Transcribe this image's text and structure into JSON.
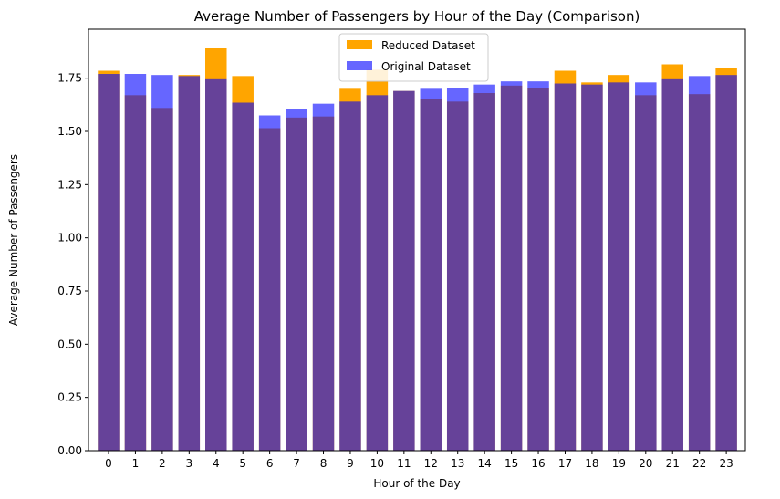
{
  "chart_data": {
    "type": "bar",
    "title": "Average Number of Passengers by Hour of the Day (Comparison)",
    "xlabel": "Hour of the Day",
    "ylabel": "Average Number of Passengers",
    "categories": [
      "0",
      "1",
      "2",
      "3",
      "4",
      "5",
      "6",
      "7",
      "8",
      "9",
      "10",
      "11",
      "12",
      "13",
      "14",
      "15",
      "16",
      "17",
      "18",
      "19",
      "20",
      "21",
      "22",
      "23"
    ],
    "ylim": [
      0,
      1.98
    ],
    "yticks": [
      "0.00",
      "0.25",
      "0.50",
      "0.75",
      "1.00",
      "1.25",
      "1.50",
      "1.75"
    ],
    "ytick_values": [
      0,
      0.25,
      0.5,
      0.75,
      1.0,
      1.25,
      1.5,
      1.75
    ],
    "series": [
      {
        "name": "Reduced Dataset",
        "color": "#ffa500",
        "opacity": 1.0,
        "values": [
          1.785,
          1.67,
          1.61,
          1.765,
          1.89,
          1.76,
          1.515,
          1.565,
          1.57,
          1.7,
          1.79,
          1.69,
          1.65,
          1.64,
          1.68,
          1.715,
          1.705,
          1.785,
          1.73,
          1.765,
          1.67,
          1.815,
          1.675,
          1.8
        ]
      },
      {
        "name": "Original Dataset",
        "color": "#0000ff",
        "opacity": 0.6,
        "values": [
          1.77,
          1.77,
          1.765,
          1.76,
          1.745,
          1.635,
          1.575,
          1.605,
          1.63,
          1.64,
          1.67,
          1.69,
          1.7,
          1.705,
          1.72,
          1.735,
          1.735,
          1.725,
          1.72,
          1.73,
          1.73,
          1.745,
          1.76,
          1.765
        ]
      }
    ],
    "legend_position": "top-center",
    "grid": false
  }
}
